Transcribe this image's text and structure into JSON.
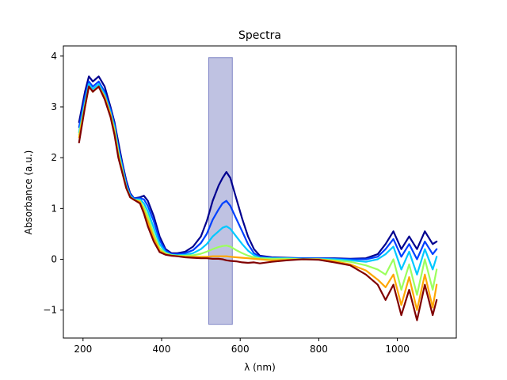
{
  "chart_data": {
    "type": "line",
    "title": "Spectra",
    "xlabel": "λ (nm)",
    "ylabel": "Absorbance (a.u.)",
    "xlim": [
      150,
      1150
    ],
    "ylim": [
      -1.55,
      4.2
    ],
    "xticks": [
      200,
      400,
      600,
      800,
      1000
    ],
    "yticks": [
      -1,
      0,
      1,
      2,
      3,
      4
    ],
    "xtick_labels": [
      "200",
      "400",
      "600",
      "800",
      "1000"
    ],
    "ytick_labels": [
      "−1",
      "0",
      "1",
      "2",
      "3",
      "4"
    ],
    "grid": false,
    "colormap": "jet",
    "highlight_region": {
      "x": [
        520,
        580
      ],
      "y": [
        -1.28,
        3.97
      ],
      "color": "#7f85c6"
    },
    "series": [
      {
        "color": "#00008f",
        "points": [
          [
            190,
            2.7
          ],
          [
            205,
            3.3
          ],
          [
            215,
            3.6
          ],
          [
            225,
            3.5
          ],
          [
            240,
            3.6
          ],
          [
            255,
            3.4
          ],
          [
            270,
            3.0
          ],
          [
            280,
            2.7
          ],
          [
            290,
            2.3
          ],
          [
            300,
            1.9
          ],
          [
            310,
            1.55
          ],
          [
            320,
            1.3
          ],
          [
            330,
            1.2
          ],
          [
            345,
            1.22
          ],
          [
            355,
            1.25
          ],
          [
            365,
            1.15
          ],
          [
            380,
            0.85
          ],
          [
            395,
            0.45
          ],
          [
            410,
            0.2
          ],
          [
            425,
            0.12
          ],
          [
            440,
            0.12
          ],
          [
            460,
            0.15
          ],
          [
            480,
            0.25
          ],
          [
            500,
            0.45
          ],
          [
            515,
            0.75
          ],
          [
            530,
            1.15
          ],
          [
            545,
            1.45
          ],
          [
            555,
            1.6
          ],
          [
            565,
            1.72
          ],
          [
            575,
            1.6
          ],
          [
            590,
            1.2
          ],
          [
            605,
            0.8
          ],
          [
            620,
            0.45
          ],
          [
            635,
            0.2
          ],
          [
            650,
            0.07
          ],
          [
            680,
            0.04
          ],
          [
            720,
            0.03
          ],
          [
            760,
            0.02
          ],
          [
            800,
            0.02
          ],
          [
            840,
            0.02
          ],
          [
            880,
            0.01
          ],
          [
            920,
            0.02
          ],
          [
            950,
            0.1
          ],
          [
            970,
            0.3
          ],
          [
            990,
            0.55
          ],
          [
            1010,
            0.2
          ],
          [
            1030,
            0.45
          ],
          [
            1050,
            0.2
          ],
          [
            1070,
            0.55
          ],
          [
            1090,
            0.3
          ],
          [
            1100,
            0.35
          ]
        ]
      },
      {
        "color": "#0040ff",
        "points": [
          [
            190,
            2.6
          ],
          [
            205,
            3.2
          ],
          [
            215,
            3.5
          ],
          [
            225,
            3.4
          ],
          [
            240,
            3.5
          ],
          [
            255,
            3.3
          ],
          [
            270,
            2.95
          ],
          [
            280,
            2.65
          ],
          [
            290,
            2.2
          ],
          [
            300,
            1.85
          ],
          [
            310,
            1.5
          ],
          [
            320,
            1.28
          ],
          [
            330,
            1.2
          ],
          [
            345,
            1.2
          ],
          [
            355,
            1.18
          ],
          [
            365,
            1.05
          ],
          [
            380,
            0.75
          ],
          [
            395,
            0.38
          ],
          [
            410,
            0.17
          ],
          [
            425,
            0.1
          ],
          [
            440,
            0.1
          ],
          [
            460,
            0.12
          ],
          [
            480,
            0.18
          ],
          [
            500,
            0.32
          ],
          [
            515,
            0.5
          ],
          [
            530,
            0.78
          ],
          [
            545,
            0.98
          ],
          [
            555,
            1.1
          ],
          [
            565,
            1.15
          ],
          [
            575,
            1.05
          ],
          [
            590,
            0.8
          ],
          [
            605,
            0.55
          ],
          [
            620,
            0.3
          ],
          [
            635,
            0.12
          ],
          [
            650,
            0.05
          ],
          [
            680,
            0.03
          ],
          [
            720,
            0.02
          ],
          [
            760,
            0.02
          ],
          [
            800,
            0.02
          ],
          [
            840,
            0.01
          ],
          [
            880,
            0.0
          ],
          [
            920,
            0.0
          ],
          [
            950,
            0.05
          ],
          [
            970,
            0.2
          ],
          [
            990,
            0.4
          ],
          [
            1010,
            0.05
          ],
          [
            1030,
            0.3
          ],
          [
            1050,
            0.0
          ],
          [
            1070,
            0.35
          ],
          [
            1090,
            0.1
          ],
          [
            1100,
            0.2
          ]
        ]
      },
      {
        "color": "#00c8ff",
        "points": [
          [
            190,
            2.5
          ],
          [
            205,
            3.1
          ],
          [
            215,
            3.45
          ],
          [
            225,
            3.35
          ],
          [
            240,
            3.45
          ],
          [
            255,
            3.25
          ],
          [
            270,
            2.9
          ],
          [
            280,
            2.6
          ],
          [
            290,
            2.15
          ],
          [
            300,
            1.8
          ],
          [
            310,
            1.45
          ],
          [
            320,
            1.25
          ],
          [
            330,
            1.18
          ],
          [
            345,
            1.18
          ],
          [
            355,
            1.1
          ],
          [
            365,
            0.95
          ],
          [
            380,
            0.62
          ],
          [
            395,
            0.3
          ],
          [
            410,
            0.14
          ],
          [
            425,
            0.09
          ],
          [
            440,
            0.08
          ],
          [
            460,
            0.09
          ],
          [
            480,
            0.12
          ],
          [
            500,
            0.2
          ],
          [
            515,
            0.3
          ],
          [
            530,
            0.45
          ],
          [
            545,
            0.55
          ],
          [
            555,
            0.62
          ],
          [
            565,
            0.65
          ],
          [
            575,
            0.6
          ],
          [
            590,
            0.45
          ],
          [
            605,
            0.3
          ],
          [
            620,
            0.17
          ],
          [
            635,
            0.08
          ],
          [
            650,
            0.03
          ],
          [
            680,
            0.02
          ],
          [
            720,
            0.02
          ],
          [
            760,
            0.01
          ],
          [
            800,
            0.01
          ],
          [
            840,
            0.0
          ],
          [
            880,
            -0.02
          ],
          [
            920,
            -0.05
          ],
          [
            950,
            0.0
          ],
          [
            970,
            0.1
          ],
          [
            990,
            0.25
          ],
          [
            1010,
            -0.2
          ],
          [
            1030,
            0.15
          ],
          [
            1050,
            -0.3
          ],
          [
            1070,
            0.2
          ],
          [
            1090,
            -0.2
          ],
          [
            1100,
            0.05
          ]
        ]
      },
      {
        "color": "#9cff5e",
        "points": [
          [
            190,
            2.45
          ],
          [
            205,
            3.05
          ],
          [
            215,
            3.4
          ],
          [
            225,
            3.3
          ],
          [
            240,
            3.4
          ],
          [
            255,
            3.2
          ],
          [
            270,
            2.85
          ],
          [
            280,
            2.55
          ],
          [
            290,
            2.1
          ],
          [
            300,
            1.75
          ],
          [
            310,
            1.42
          ],
          [
            320,
            1.23
          ],
          [
            330,
            1.17
          ],
          [
            345,
            1.15
          ],
          [
            355,
            1.02
          ],
          [
            365,
            0.85
          ],
          [
            380,
            0.5
          ],
          [
            395,
            0.22
          ],
          [
            410,
            0.12
          ],
          [
            425,
            0.08
          ],
          [
            440,
            0.07
          ],
          [
            460,
            0.07
          ],
          [
            480,
            0.08
          ],
          [
            500,
            0.11
          ],
          [
            515,
            0.15
          ],
          [
            530,
            0.2
          ],
          [
            545,
            0.24
          ],
          [
            555,
            0.26
          ],
          [
            565,
            0.27
          ],
          [
            575,
            0.25
          ],
          [
            590,
            0.18
          ],
          [
            605,
            0.12
          ],
          [
            620,
            0.07
          ],
          [
            635,
            0.04
          ],
          [
            650,
            0.02
          ],
          [
            680,
            0.01
          ],
          [
            720,
            0.01
          ],
          [
            760,
            0.0
          ],
          [
            800,
            0.0
          ],
          [
            840,
            -0.02
          ],
          [
            880,
            -0.05
          ],
          [
            920,
            -0.12
          ],
          [
            950,
            -0.2
          ],
          [
            970,
            -0.3
          ],
          [
            990,
            0.0
          ],
          [
            1010,
            -0.6
          ],
          [
            1030,
            -0.1
          ],
          [
            1050,
            -0.7
          ],
          [
            1070,
            0.0
          ],
          [
            1090,
            -0.6
          ],
          [
            1100,
            -0.2
          ]
        ]
      },
      {
        "color": "#ffa600",
        "points": [
          [
            190,
            2.4
          ],
          [
            205,
            3.0
          ],
          [
            215,
            3.4
          ],
          [
            225,
            3.3
          ],
          [
            240,
            3.4
          ],
          [
            255,
            3.2
          ],
          [
            270,
            2.85
          ],
          [
            280,
            2.5
          ],
          [
            290,
            2.05
          ],
          [
            300,
            1.72
          ],
          [
            310,
            1.4
          ],
          [
            320,
            1.22
          ],
          [
            330,
            1.17
          ],
          [
            345,
            1.13
          ],
          [
            355,
            0.95
          ],
          [
            365,
            0.75
          ],
          [
            380,
            0.42
          ],
          [
            395,
            0.17
          ],
          [
            410,
            0.1
          ],
          [
            425,
            0.07
          ],
          [
            440,
            0.06
          ],
          [
            460,
            0.05
          ],
          [
            480,
            0.05
          ],
          [
            500,
            0.05
          ],
          [
            515,
            0.05
          ],
          [
            530,
            0.06
          ],
          [
            545,
            0.06
          ],
          [
            555,
            0.06
          ],
          [
            565,
            0.06
          ],
          [
            575,
            0.05
          ],
          [
            590,
            0.04
          ],
          [
            605,
            0.03
          ],
          [
            620,
            0.02
          ],
          [
            635,
            0.01
          ],
          [
            650,
            0.0
          ],
          [
            680,
            -0.02
          ],
          [
            720,
            -0.01
          ],
          [
            760,
            0.0
          ],
          [
            800,
            0.0
          ],
          [
            840,
            -0.04
          ],
          [
            880,
            -0.1
          ],
          [
            920,
            -0.22
          ],
          [
            950,
            -0.4
          ],
          [
            970,
            -0.55
          ],
          [
            990,
            -0.3
          ],
          [
            1010,
            -0.9
          ],
          [
            1030,
            -0.35
          ],
          [
            1050,
            -1.0
          ],
          [
            1070,
            -0.3
          ],
          [
            1090,
            -0.95
          ],
          [
            1100,
            -0.5
          ]
        ]
      },
      {
        "color": "#800000",
        "points": [
          [
            190,
            2.3
          ],
          [
            205,
            3.0
          ],
          [
            215,
            3.4
          ],
          [
            225,
            3.3
          ],
          [
            240,
            3.4
          ],
          [
            255,
            3.15
          ],
          [
            270,
            2.8
          ],
          [
            280,
            2.45
          ],
          [
            290,
            2.0
          ],
          [
            300,
            1.7
          ],
          [
            310,
            1.4
          ],
          [
            320,
            1.22
          ],
          [
            330,
            1.17
          ],
          [
            345,
            1.1
          ],
          [
            355,
            0.9
          ],
          [
            365,
            0.65
          ],
          [
            380,
            0.35
          ],
          [
            395,
            0.14
          ],
          [
            410,
            0.09
          ],
          [
            425,
            0.07
          ],
          [
            440,
            0.06
          ],
          [
            460,
            0.04
          ],
          [
            480,
            0.03
          ],
          [
            500,
            0.02
          ],
          [
            515,
            0.02
          ],
          [
            530,
            0.01
          ],
          [
            545,
            0.01
          ],
          [
            555,
            0.0
          ],
          [
            565,
            -0.02
          ],
          [
            575,
            -0.03
          ],
          [
            590,
            -0.04
          ],
          [
            605,
            -0.06
          ],
          [
            620,
            -0.07
          ],
          [
            635,
            -0.06
          ],
          [
            650,
            -0.08
          ],
          [
            680,
            -0.05
          ],
          [
            720,
            -0.02
          ],
          [
            760,
            0.0
          ],
          [
            800,
            -0.01
          ],
          [
            840,
            -0.06
          ],
          [
            880,
            -0.12
          ],
          [
            920,
            -0.3
          ],
          [
            950,
            -0.5
          ],
          [
            970,
            -0.8
          ],
          [
            990,
            -0.5
          ],
          [
            1010,
            -1.1
          ],
          [
            1030,
            -0.6
          ],
          [
            1050,
            -1.2
          ],
          [
            1070,
            -0.5
          ],
          [
            1090,
            -1.1
          ],
          [
            1100,
            -0.8
          ]
        ]
      }
    ]
  }
}
